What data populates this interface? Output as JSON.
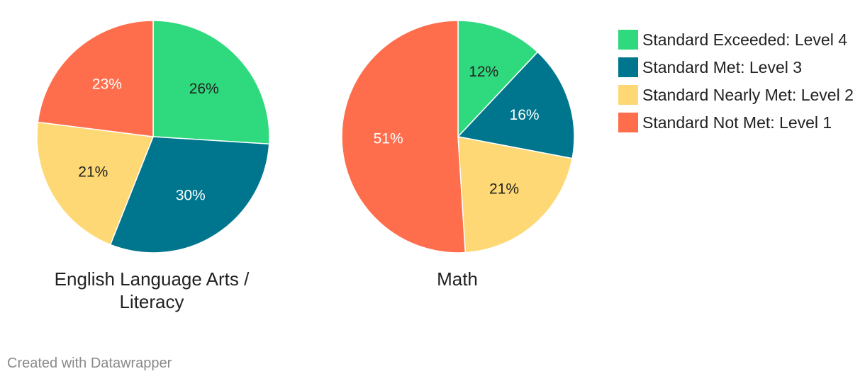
{
  "colors": {
    "level4": "#2fd97d",
    "level3": "#00768e",
    "level2": "#fdd874",
    "level1": "#fe6e4c"
  },
  "legend": [
    {
      "label": "Standard Exceeded: Level 4",
      "color": "#2fd97d"
    },
    {
      "label": "Standard Met: Level 3",
      "color": "#00768e"
    },
    {
      "label": "Standard Nearly Met: Level 2",
      "color": "#fdd874"
    },
    {
      "label": "Standard Not Met: Level 1",
      "color": "#fe6e4c"
    }
  ],
  "chart_data": [
    {
      "type": "pie",
      "title": "English Language Arts / Literacy",
      "title_lines": [
        "English Language Arts /",
        "Literacy"
      ],
      "categories": [
        "Standard Exceeded: Level 4",
        "Standard Met: Level 3",
        "Standard Nearly Met: Level 2",
        "Standard Not Met: Level 1"
      ],
      "values": [
        26,
        30,
        21,
        23
      ],
      "labels": [
        "26%",
        "30%",
        "21%",
        "23%"
      ],
      "label_colors": [
        "#222222",
        "#ffffff",
        "#222222",
        "#ffffff"
      ]
    },
    {
      "type": "pie",
      "title": "Math",
      "title_lines": [
        "Math"
      ],
      "categories": [
        "Standard Exceeded: Level 4",
        "Standard Met: Level 3",
        "Standard Nearly Met: Level 2",
        "Standard Not Met: Level 1"
      ],
      "values": [
        12,
        16,
        21,
        51
      ],
      "labels": [
        "12%",
        "16%",
        "21%",
        "51%"
      ],
      "label_colors": [
        "#222222",
        "#ffffff",
        "#222222",
        "#ffffff"
      ]
    }
  ],
  "footer": {
    "credit": "Created with Datawrapper"
  }
}
